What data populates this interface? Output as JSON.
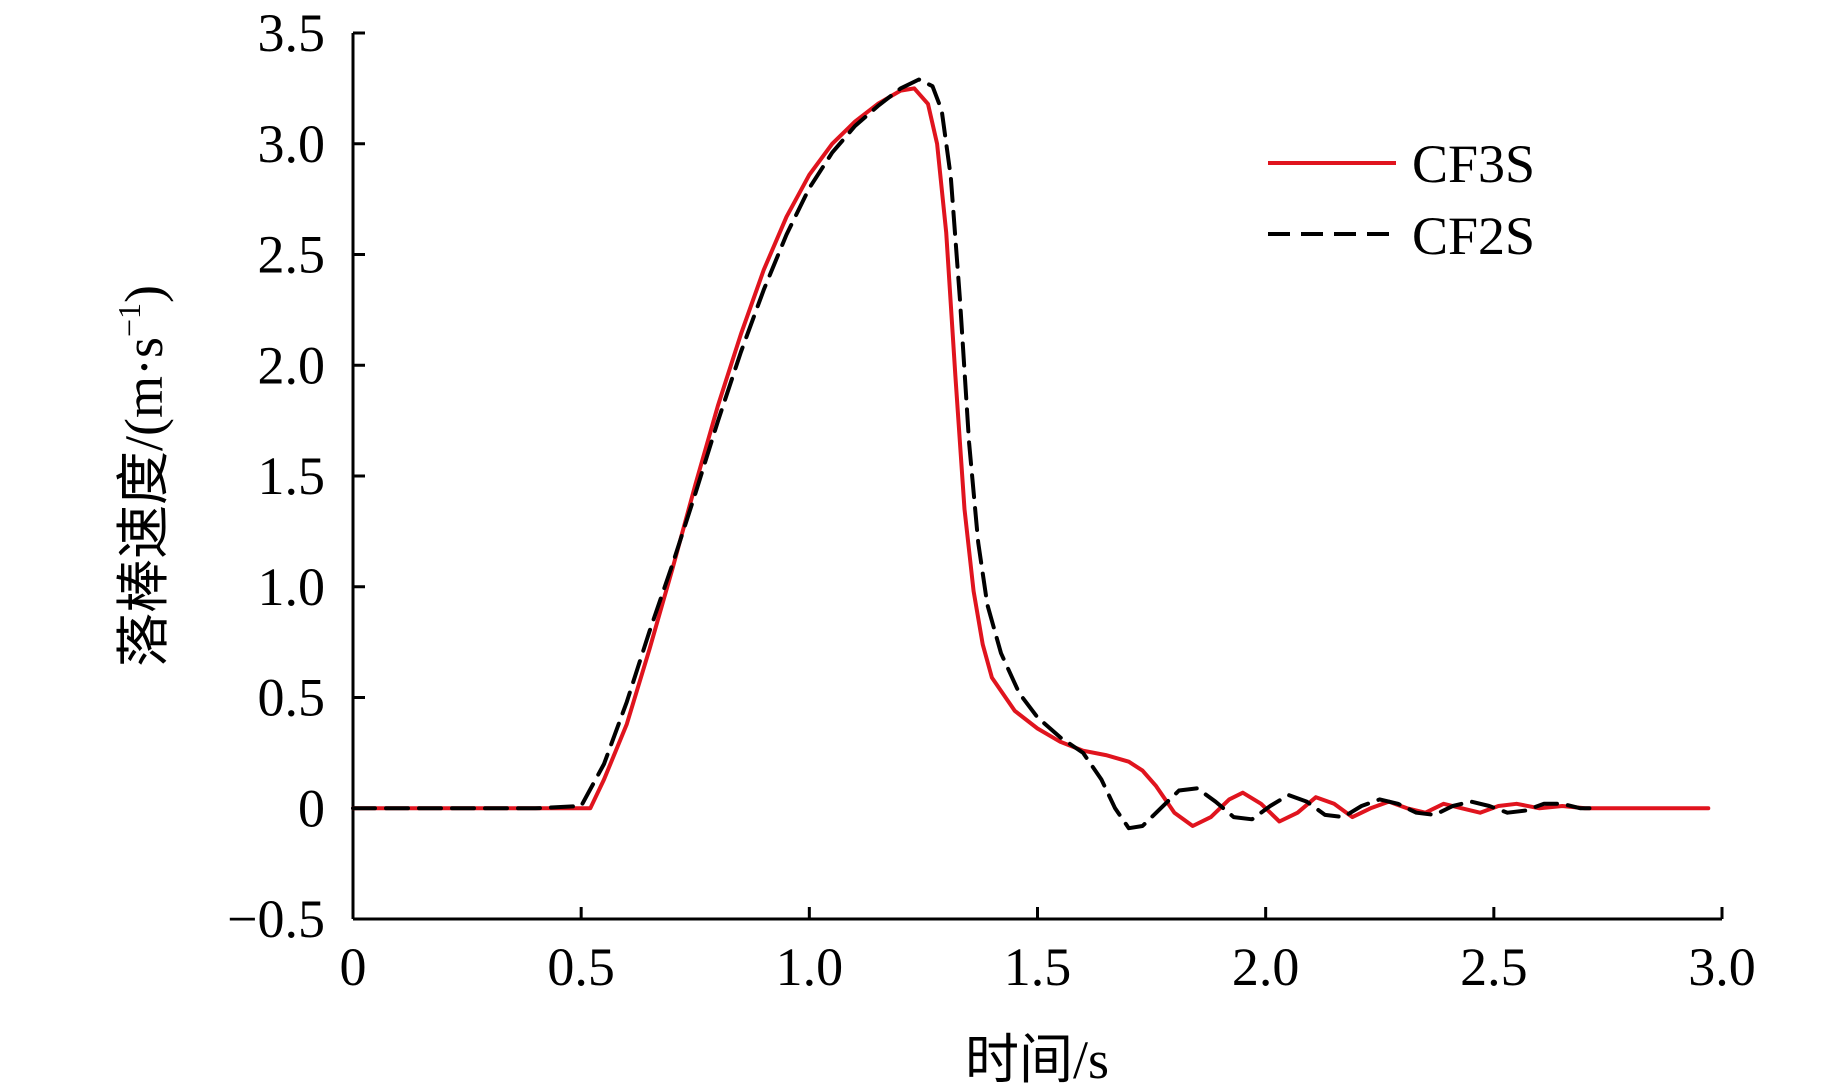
{
  "chart_data": {
    "type": "line",
    "title": "",
    "xlabel": "时间/s",
    "ylabel": "落棒速度/(m·s",
    "ylabel_exponent": "−1",
    "ylabel_close": ")",
    "xlim": [
      0,
      3.0
    ],
    "ylim": [
      -0.5,
      3.5
    ],
    "x_ticks": [
      0,
      0.5,
      1.0,
      1.5,
      2.0,
      2.5,
      3.0
    ],
    "x_tick_labels": [
      "0",
      "0.5",
      "1.0",
      "1.5",
      "2.0",
      "2.5",
      "3.0"
    ],
    "y_ticks": [
      -0.5,
      0,
      0.5,
      1.0,
      1.5,
      2.0,
      2.5,
      3.0,
      3.5
    ],
    "y_tick_labels": [
      "−0.5",
      "0",
      "0.5",
      "1.0",
      "1.5",
      "2.0",
      "2.5",
      "3.0",
      "3.5"
    ],
    "grid": false,
    "legend_position": "top-right",
    "series": [
      {
        "name": "CF3S",
        "color": "#e0141e",
        "style": "solid",
        "points": [
          [
            0.0,
            0.0
          ],
          [
            0.1,
            0.0
          ],
          [
            0.2,
            0.0
          ],
          [
            0.3,
            0.0
          ],
          [
            0.4,
            0.0
          ],
          [
            0.5,
            0.0
          ],
          [
            0.52,
            0.0
          ],
          [
            0.55,
            0.13
          ],
          [
            0.6,
            0.38
          ],
          [
            0.65,
            0.72
          ],
          [
            0.7,
            1.08
          ],
          [
            0.75,
            1.46
          ],
          [
            0.8,
            1.82
          ],
          [
            0.85,
            2.14
          ],
          [
            0.9,
            2.43
          ],
          [
            0.95,
            2.67
          ],
          [
            1.0,
            2.86
          ],
          [
            1.05,
            3.0
          ],
          [
            1.1,
            3.1
          ],
          [
            1.15,
            3.18
          ],
          [
            1.2,
            3.24
          ],
          [
            1.23,
            3.25
          ],
          [
            1.26,
            3.18
          ],
          [
            1.28,
            3.0
          ],
          [
            1.3,
            2.6
          ],
          [
            1.32,
            1.95
          ],
          [
            1.34,
            1.35
          ],
          [
            1.36,
            0.98
          ],
          [
            1.38,
            0.74
          ],
          [
            1.4,
            0.59
          ],
          [
            1.45,
            0.44
          ],
          [
            1.5,
            0.36
          ],
          [
            1.55,
            0.3
          ],
          [
            1.6,
            0.26
          ],
          [
            1.65,
            0.24
          ],
          [
            1.7,
            0.21
          ],
          [
            1.73,
            0.17
          ],
          [
            1.76,
            0.1
          ],
          [
            1.8,
            -0.02
          ],
          [
            1.84,
            -0.08
          ],
          [
            1.88,
            -0.04
          ],
          [
            1.92,
            0.04
          ],
          [
            1.95,
            0.07
          ],
          [
            1.99,
            0.02
          ],
          [
            2.03,
            -0.06
          ],
          [
            2.07,
            -0.02
          ],
          [
            2.11,
            0.05
          ],
          [
            2.15,
            0.02
          ],
          [
            2.19,
            -0.04
          ],
          [
            2.23,
            0.0
          ],
          [
            2.27,
            0.03
          ],
          [
            2.31,
            0.0
          ],
          [
            2.35,
            -0.02
          ],
          [
            2.39,
            0.02
          ],
          [
            2.43,
            0.0
          ],
          [
            2.47,
            -0.02
          ],
          [
            2.51,
            0.01
          ],
          [
            2.55,
            0.02
          ],
          [
            2.6,
            0.0
          ],
          [
            2.65,
            0.01
          ],
          [
            2.7,
            0.0
          ],
          [
            2.75,
            0.0
          ],
          [
            2.8,
            0.0
          ],
          [
            2.9,
            0.0
          ],
          [
            2.97,
            0.0
          ]
        ]
      },
      {
        "name": "CF2S",
        "color": "#000000",
        "style": "dashed",
        "points": [
          [
            0.0,
            0.0
          ],
          [
            0.1,
            0.0
          ],
          [
            0.2,
            0.0
          ],
          [
            0.3,
            0.0
          ],
          [
            0.4,
            0.0
          ],
          [
            0.5,
            0.01
          ],
          [
            0.55,
            0.2
          ],
          [
            0.6,
            0.48
          ],
          [
            0.65,
            0.8
          ],
          [
            0.7,
            1.1
          ],
          [
            0.75,
            1.42
          ],
          [
            0.8,
            1.75
          ],
          [
            0.85,
            2.06
          ],
          [
            0.9,
            2.34
          ],
          [
            0.95,
            2.59
          ],
          [
            1.0,
            2.8
          ],
          [
            1.05,
            2.96
          ],
          [
            1.1,
            3.08
          ],
          [
            1.15,
            3.17
          ],
          [
            1.2,
            3.25
          ],
          [
            1.24,
            3.29
          ],
          [
            1.27,
            3.26
          ],
          [
            1.29,
            3.15
          ],
          [
            1.31,
            2.85
          ],
          [
            1.33,
            2.3
          ],
          [
            1.35,
            1.65
          ],
          [
            1.37,
            1.2
          ],
          [
            1.39,
            0.92
          ],
          [
            1.42,
            0.7
          ],
          [
            1.46,
            0.52
          ],
          [
            1.5,
            0.41
          ],
          [
            1.55,
            0.32
          ],
          [
            1.6,
            0.25
          ],
          [
            1.64,
            0.13
          ],
          [
            1.67,
            0.0
          ],
          [
            1.7,
            -0.09
          ],
          [
            1.73,
            -0.08
          ],
          [
            1.77,
            0.0
          ],
          [
            1.81,
            0.08
          ],
          [
            1.85,
            0.09
          ],
          [
            1.89,
            0.03
          ],
          [
            1.93,
            -0.04
          ],
          [
            1.97,
            -0.05
          ],
          [
            2.01,
            0.01
          ],
          [
            2.05,
            0.06
          ],
          [
            2.09,
            0.03
          ],
          [
            2.13,
            -0.03
          ],
          [
            2.17,
            -0.04
          ],
          [
            2.21,
            0.01
          ],
          [
            2.25,
            0.04
          ],
          [
            2.29,
            0.02
          ],
          [
            2.33,
            -0.02
          ],
          [
            2.37,
            -0.03
          ],
          [
            2.41,
            0.01
          ],
          [
            2.45,
            0.03
          ],
          [
            2.49,
            0.01
          ],
          [
            2.53,
            -0.02
          ],
          [
            2.57,
            -0.01
          ],
          [
            2.61,
            0.02
          ],
          [
            2.65,
            0.02
          ],
          [
            2.69,
            0.0
          ],
          [
            2.72,
            0.0
          ]
        ]
      }
    ]
  }
}
